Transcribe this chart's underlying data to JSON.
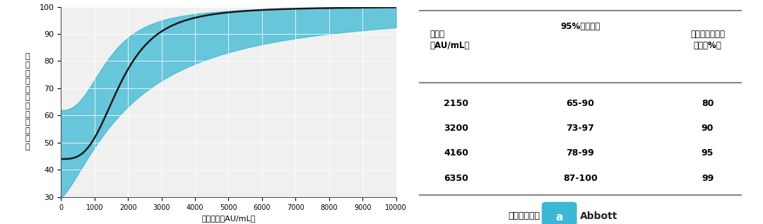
{
  "xlabel": "抗体価　（AU/mL）",
  "ylabel": "発\n症\n予\n防\n効\n果\nの\n確\n率\n（\n％\n）",
  "xlim": [
    0,
    10000
  ],
  "ylim": [
    30,
    100
  ],
  "yticks": [
    30,
    40,
    50,
    60,
    70,
    80,
    90,
    100
  ],
  "xticks": [
    0,
    1000,
    2000,
    3000,
    4000,
    5000,
    6000,
    7000,
    8000,
    9000,
    10000
  ],
  "curve_color": "#1a1a1a",
  "fill_color": "#3bb8d4",
  "fill_alpha": 0.75,
  "background_color": "#f0f0f0",
  "table_col1": [
    "抗体価\n（AU/mL）",
    "2150",
    "3200",
    "4160",
    "6350"
  ],
  "table_col2": [
    "95%信頼区間",
    "65-90",
    "73-97",
    "78-99",
    "87-100"
  ],
  "table_col3": [
    "発症予防効果の\n確率（%）",
    "80",
    "90",
    "95",
    "99"
  ],
  "ref_text": "参考データ：",
  "abbott_text": "Abbott",
  "abbott_color": "#3bb8d4",
  "line_color": "#888888"
}
